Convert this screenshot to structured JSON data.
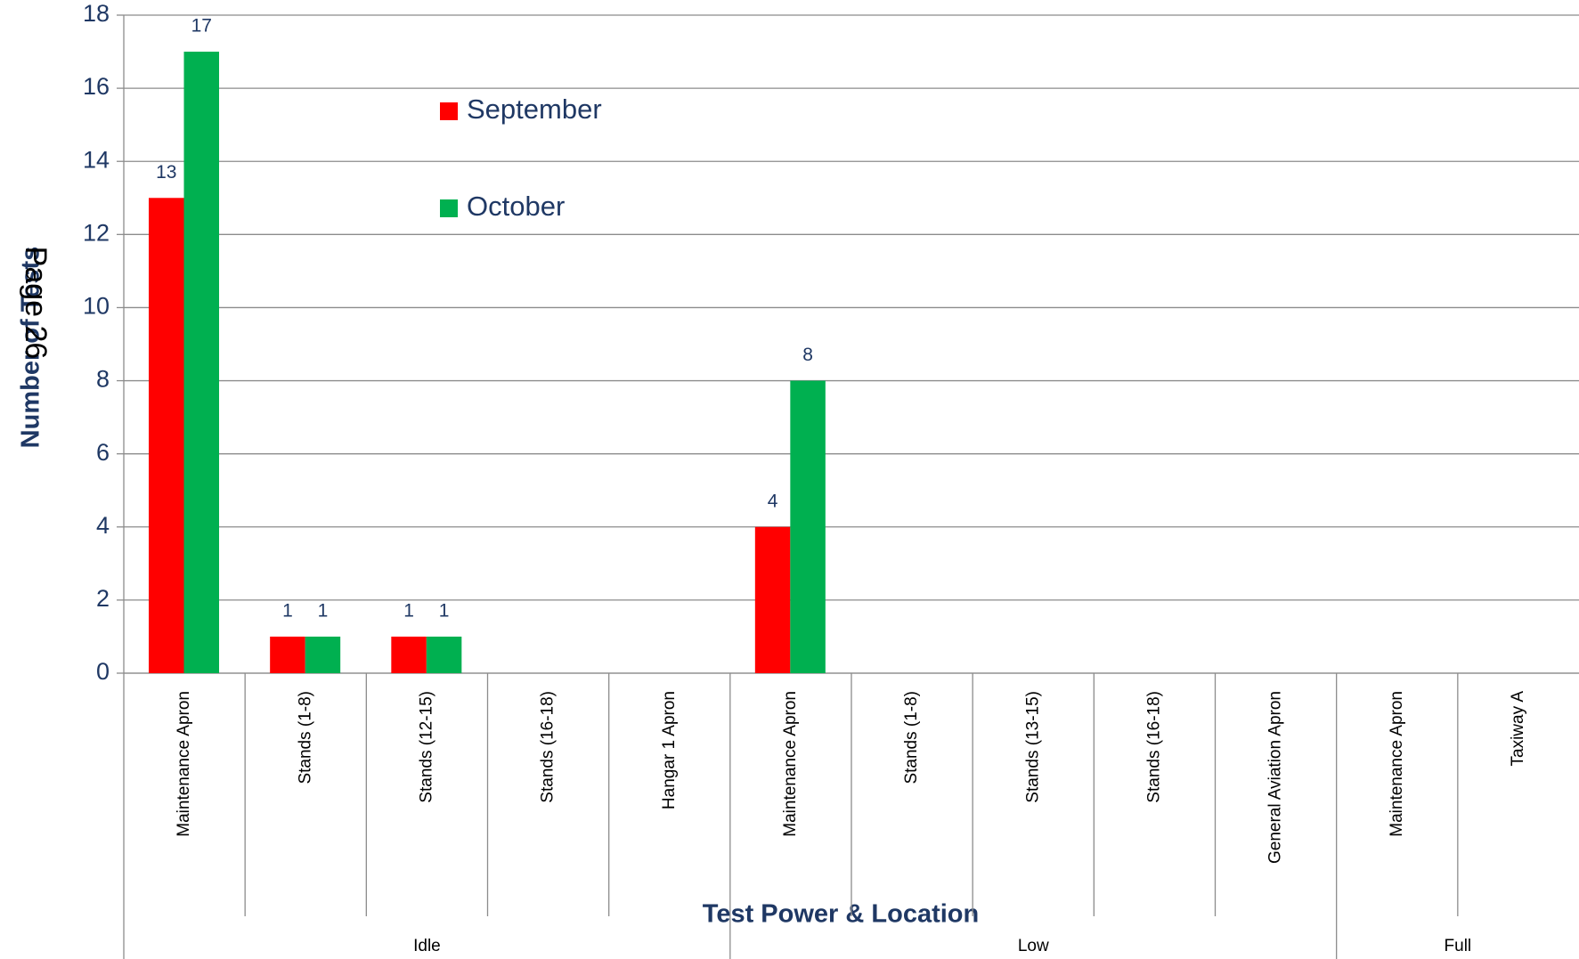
{
  "chart_data": {
    "type": "bar",
    "xlabel": "Test Power & Location",
    "ylabel": "Number of Tests",
    "overlay_text": "Page 26",
    "groups": [
      {
        "name": "Idle",
        "categories": [
          "Maintenance Apron",
          "Stands (1-8)",
          "Stands (12-15)",
          "Stands (16-18)",
          "Hangar 1 Apron"
        ]
      },
      {
        "name": "Low",
        "categories": [
          "Maintenance Apron",
          "Stands (1-8)",
          "Stands (13-15)",
          "Stands (16-18)",
          "General Aviation Apron"
        ]
      },
      {
        "name": "Full",
        "categories": [
          "Maintenance Apron",
          "Taxiway A"
        ]
      }
    ],
    "series": [
      {
        "name": "September",
        "color": "#ff0000",
        "values": [
          13,
          1,
          1,
          null,
          null,
          4,
          null,
          null,
          null,
          null,
          null,
          null
        ]
      },
      {
        "name": "October",
        "color": "#00b050",
        "values": [
          17,
          1,
          1,
          null,
          null,
          8,
          null,
          null,
          null,
          null,
          null,
          null
        ]
      }
    ],
    "ylim": [
      0,
      18
    ],
    "yticks": [
      0,
      2,
      4,
      6,
      8,
      10,
      12,
      14,
      16,
      18
    ],
    "grid": true
  }
}
